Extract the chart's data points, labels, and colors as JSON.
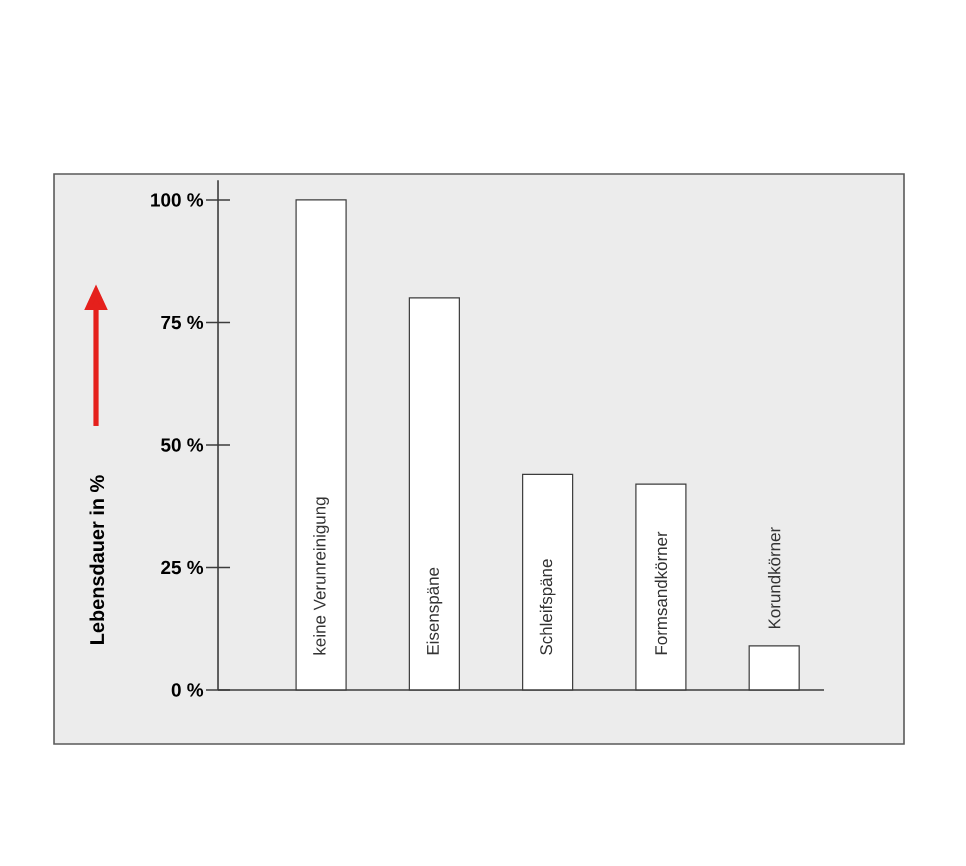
{
  "chart_data": {
    "type": "bar",
    "categories": [
      "keine Verunreinigung",
      "Eisenspäne",
      "Schleifspäne",
      "Formsandkörner",
      "Korundkörner"
    ],
    "values": [
      100,
      80,
      44,
      42,
      9
    ],
    "color": "#ffffff",
    "ylabel": "Lebensdauer in %",
    "ylim": [
      0,
      104
    ],
    "yticks": [
      {
        "value": 0,
        "label": "0 %"
      },
      {
        "value": 25,
        "label": "25 %"
      },
      {
        "value": 50,
        "label": "50 %"
      },
      {
        "value": 75,
        "label": "75 %"
      },
      {
        "value": 100,
        "label": "100 %"
      }
    ]
  }
}
